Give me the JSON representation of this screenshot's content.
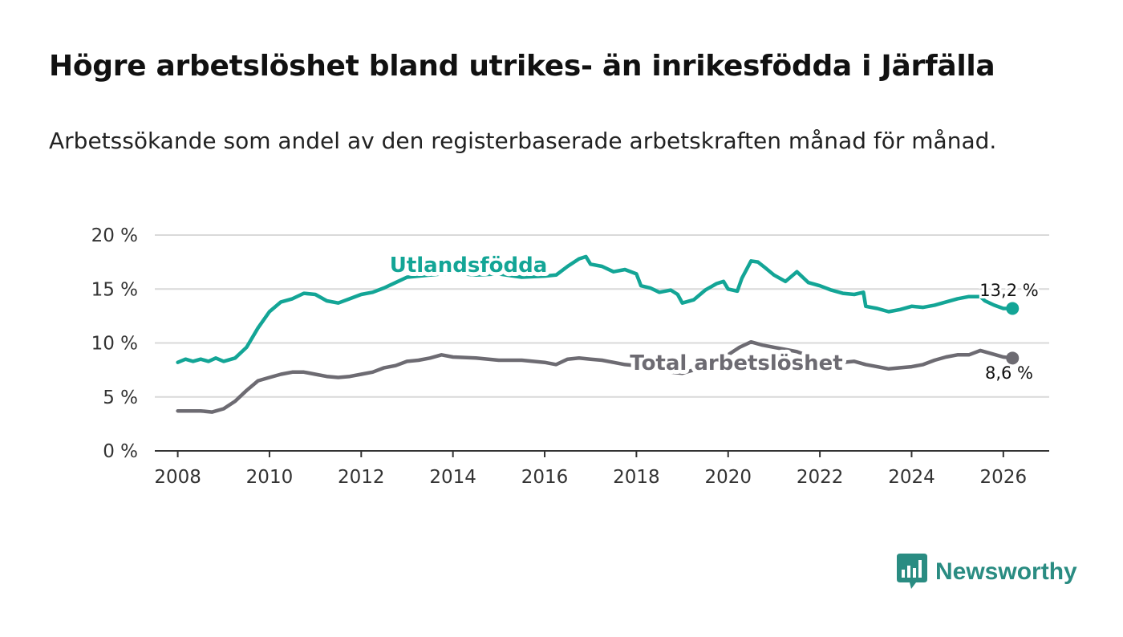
{
  "title": "Högre arbetslöshet bland utrikes- än inrikesfödda i Järfälla",
  "subtitle": "Arbetssökande som andel av den registerbaserade arbetskraften månad för månad.",
  "brand": {
    "name": "Newsworthy",
    "color": "#2a8c82",
    "icon": "bar-chart-icon"
  },
  "colors": {
    "foreign": "#13a596",
    "total": "#6d6b72",
    "grid": "#d9d9d9",
    "axis": "#333333"
  },
  "chart_data": {
    "type": "line",
    "title": "Högre arbetslöshet bland utrikes- än inrikesfödda i Järfälla",
    "xlabel": "",
    "ylabel": "",
    "xlim": [
      2007.5,
      2027.0
    ],
    "ylim": [
      0,
      20
    ],
    "grid": true,
    "legend": "inline",
    "y_ticks": [
      0,
      5,
      10,
      15,
      20
    ],
    "y_tick_labels": [
      "0 %",
      "5 %",
      "10 %",
      "15 %",
      "20 %"
    ],
    "x_ticks": [
      2008,
      2010,
      2012,
      2014,
      2016,
      2018,
      2020,
      2022,
      2024,
      2026
    ],
    "x_tick_labels": [
      "2008",
      "2010",
      "2012",
      "2014",
      "2016",
      "2018",
      "2020",
      "2022",
      "2024",
      "2026"
    ],
    "series": [
      {
        "name": "Utlandsfödda",
        "label": "Utlandsfödda",
        "color": "#13a596",
        "end_label": "13,2 %",
        "points": [
          [
            2008.0,
            8.2
          ],
          [
            2008.17,
            8.5
          ],
          [
            2008.33,
            8.3
          ],
          [
            2008.5,
            8.5
          ],
          [
            2008.67,
            8.3
          ],
          [
            2008.83,
            8.6
          ],
          [
            2009.0,
            8.3
          ],
          [
            2009.25,
            8.6
          ],
          [
            2009.5,
            9.6
          ],
          [
            2009.75,
            11.4
          ],
          [
            2010.0,
            12.9
          ],
          [
            2010.25,
            13.8
          ],
          [
            2010.5,
            14.1
          ],
          [
            2010.75,
            14.6
          ],
          [
            2011.0,
            14.5
          ],
          [
            2011.25,
            13.9
          ],
          [
            2011.5,
            13.7
          ],
          [
            2011.75,
            14.1
          ],
          [
            2012.0,
            14.5
          ],
          [
            2012.25,
            14.7
          ],
          [
            2012.5,
            15.1
          ],
          [
            2012.75,
            15.6
          ],
          [
            2013.0,
            16.1
          ],
          [
            2013.5,
            16.3
          ],
          [
            2014.0,
            16.5
          ],
          [
            2014.5,
            16.3
          ],
          [
            2015.0,
            16.4
          ],
          [
            2015.5,
            16.1
          ],
          [
            2016.0,
            16.2
          ],
          [
            2016.25,
            16.3
          ],
          [
            2016.5,
            17.1
          ],
          [
            2016.75,
            17.8
          ],
          [
            2016.9,
            18.0
          ],
          [
            2017.0,
            17.3
          ],
          [
            2017.25,
            17.1
          ],
          [
            2017.5,
            16.6
          ],
          [
            2017.75,
            16.8
          ],
          [
            2018.0,
            16.4
          ],
          [
            2018.1,
            15.3
          ],
          [
            2018.3,
            15.1
          ],
          [
            2018.5,
            14.7
          ],
          [
            2018.75,
            14.9
          ],
          [
            2018.9,
            14.5
          ],
          [
            2019.0,
            13.7
          ],
          [
            2019.25,
            14.0
          ],
          [
            2019.5,
            14.9
          ],
          [
            2019.75,
            15.5
          ],
          [
            2019.9,
            15.7
          ],
          [
            2020.0,
            15.0
          ],
          [
            2020.2,
            14.8
          ],
          [
            2020.3,
            16.0
          ],
          [
            2020.5,
            17.6
          ],
          [
            2020.65,
            17.5
          ],
          [
            2020.8,
            17.0
          ],
          [
            2021.0,
            16.3
          ],
          [
            2021.25,
            15.7
          ],
          [
            2021.5,
            16.6
          ],
          [
            2021.75,
            15.6
          ],
          [
            2022.0,
            15.3
          ],
          [
            2022.25,
            14.9
          ],
          [
            2022.5,
            14.6
          ],
          [
            2022.75,
            14.5
          ],
          [
            2022.95,
            14.7
          ],
          [
            2023.0,
            13.4
          ],
          [
            2023.25,
            13.2
          ],
          [
            2023.5,
            12.9
          ],
          [
            2023.75,
            13.1
          ],
          [
            2024.0,
            13.4
          ],
          [
            2024.25,
            13.3
          ],
          [
            2024.5,
            13.5
          ],
          [
            2024.75,
            13.8
          ],
          [
            2025.0,
            14.1
          ],
          [
            2025.25,
            14.3
          ],
          [
            2025.5,
            14.3
          ],
          [
            2025.6,
            13.9
          ],
          [
            2025.8,
            13.5
          ],
          [
            2026.0,
            13.2
          ],
          [
            2026.2,
            13.2
          ]
        ]
      },
      {
        "name": "Total arbetslöshet",
        "label": "Total arbetslöshet",
        "color": "#6d6b72",
        "end_label": "8,6 %",
        "points": [
          [
            2008.0,
            3.7
          ],
          [
            2008.25,
            3.7
          ],
          [
            2008.5,
            3.7
          ],
          [
            2008.75,
            3.6
          ],
          [
            2009.0,
            3.9
          ],
          [
            2009.25,
            4.6
          ],
          [
            2009.5,
            5.6
          ],
          [
            2009.75,
            6.5
          ],
          [
            2010.0,
            6.8
          ],
          [
            2010.25,
            7.1
          ],
          [
            2010.5,
            7.3
          ],
          [
            2010.75,
            7.3
          ],
          [
            2011.0,
            7.1
          ],
          [
            2011.25,
            6.9
          ],
          [
            2011.5,
            6.8
          ],
          [
            2011.75,
            6.9
          ],
          [
            2012.0,
            7.1
          ],
          [
            2012.25,
            7.3
          ],
          [
            2012.5,
            7.7
          ],
          [
            2012.75,
            7.9
          ],
          [
            2013.0,
            8.3
          ],
          [
            2013.25,
            8.4
          ],
          [
            2013.5,
            8.6
          ],
          [
            2013.75,
            8.9
          ],
          [
            2014.0,
            8.7
          ],
          [
            2014.5,
            8.6
          ],
          [
            2015.0,
            8.4
          ],
          [
            2015.5,
            8.4
          ],
          [
            2016.0,
            8.2
          ],
          [
            2016.25,
            8.0
          ],
          [
            2016.5,
            8.5
          ],
          [
            2016.75,
            8.6
          ],
          [
            2017.0,
            8.5
          ],
          [
            2017.25,
            8.4
          ],
          [
            2017.5,
            8.2
          ],
          [
            2017.75,
            8.0
          ],
          [
            2018.0,
            7.9
          ],
          [
            2018.25,
            7.8
          ],
          [
            2018.5,
            7.5
          ],
          [
            2018.75,
            7.3
          ],
          [
            2019.0,
            7.2
          ],
          [
            2019.25,
            7.5
          ],
          [
            2019.5,
            7.9
          ],
          [
            2019.75,
            8.3
          ],
          [
            2020.0,
            8.9
          ],
          [
            2020.25,
            9.6
          ],
          [
            2020.5,
            10.1
          ],
          [
            2020.75,
            9.8
          ],
          [
            2021.0,
            9.6
          ],
          [
            2021.25,
            9.4
          ],
          [
            2021.5,
            9.2
          ],
          [
            2021.75,
            8.8
          ],
          [
            2022.0,
            8.5
          ],
          [
            2022.25,
            8.3
          ],
          [
            2022.5,
            8.2
          ],
          [
            2022.75,
            8.3
          ],
          [
            2023.0,
            8.0
          ],
          [
            2023.25,
            7.8
          ],
          [
            2023.5,
            7.6
          ],
          [
            2023.75,
            7.7
          ],
          [
            2024.0,
            7.8
          ],
          [
            2024.25,
            8.0
          ],
          [
            2024.5,
            8.4
          ],
          [
            2024.75,
            8.7
          ],
          [
            2025.0,
            8.9
          ],
          [
            2025.25,
            8.9
          ],
          [
            2025.5,
            9.3
          ],
          [
            2025.75,
            9.0
          ],
          [
            2026.0,
            8.7
          ],
          [
            2026.2,
            8.6
          ]
        ]
      }
    ]
  }
}
